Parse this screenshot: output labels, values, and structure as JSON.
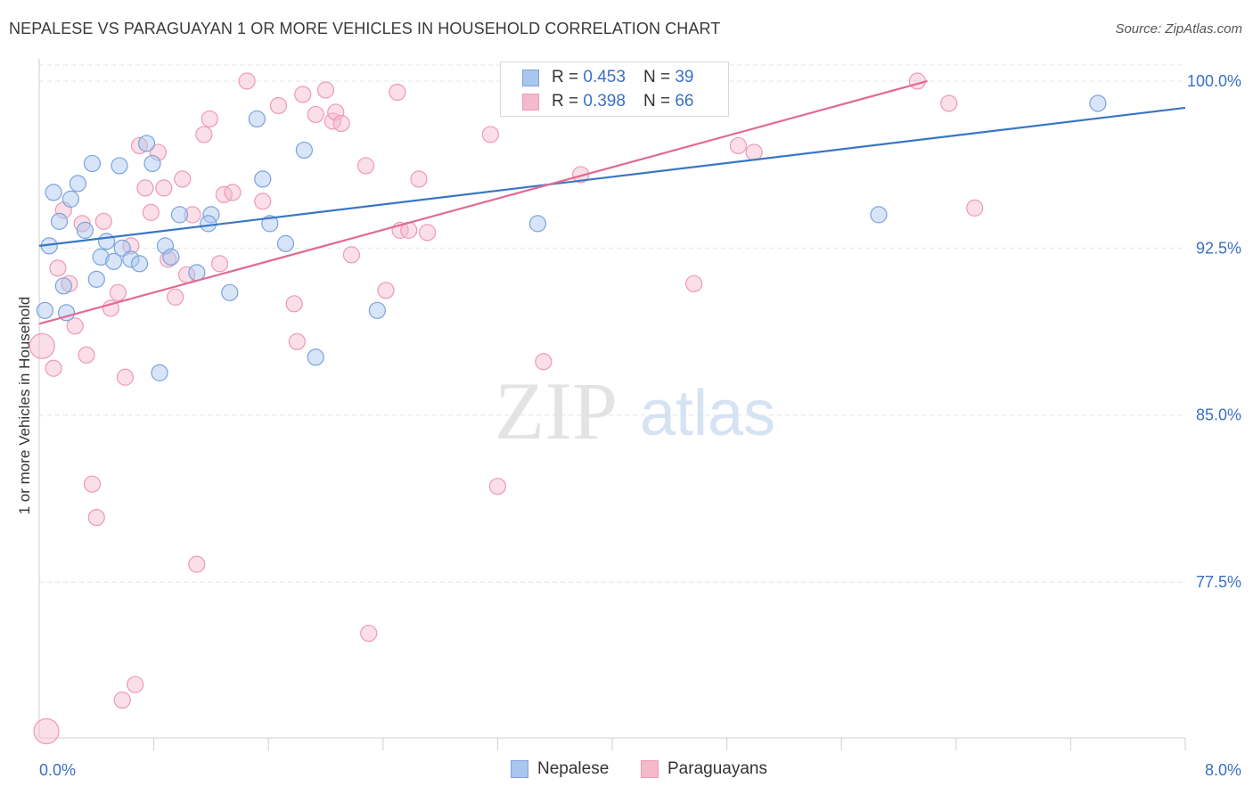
{
  "title": "NEPALESE VS PARAGUAYAN 1 OR MORE VEHICLES IN HOUSEHOLD CORRELATION CHART",
  "source": "Source: ZipAtlas.com",
  "watermark": {
    "zip": "ZIP",
    "atlas": "atlas"
  },
  "legend": {
    "rows": [
      {
        "r_label": "R =",
        "r_value": "0.453",
        "n_label": "N =",
        "n_value": "39"
      },
      {
        "r_label": "R =",
        "r_value": "0.398",
        "n_label": "N =",
        "n_value": "66"
      }
    ]
  },
  "colors": {
    "blue_fill": "#a9c6ef",
    "blue_stroke": "#7aa3dc",
    "blue_line": "#3a76c4",
    "pink_fill": "#f5b9cc",
    "pink_stroke": "#ee9ab4",
    "pink_line": "#e26a94",
    "tick_label": "#3b6fc5",
    "grid": "#e4e4e4"
  },
  "chart_data": {
    "type": "scatter",
    "xlabel": "",
    "ylabel": "1 or more Vehicles in Household",
    "xlim": [
      0.0,
      8.0
    ],
    "ylim": [
      70.5,
      101.0
    ],
    "x_tick_labels": [
      "0.0%",
      "8.0%"
    ],
    "y_ticks": [
      100.0,
      92.5,
      85.0,
      77.5
    ],
    "y_tick_labels": [
      "100.0%",
      "92.5%",
      "85.0%",
      "77.5%"
    ],
    "grid": true,
    "legend_position": "top-center",
    "series": [
      {
        "name": "Nepalese",
        "points": [
          [
            0.04,
            89.7
          ],
          [
            0.07,
            92.6
          ],
          [
            0.1,
            95.0
          ],
          [
            0.14,
            93.7
          ],
          [
            0.17,
            90.8
          ],
          [
            0.19,
            89.6
          ],
          [
            0.22,
            94.7
          ],
          [
            0.27,
            95.4
          ],
          [
            0.32,
            93.3
          ],
          [
            0.37,
            96.3
          ],
          [
            0.4,
            91.1
          ],
          [
            0.43,
            92.1
          ],
          [
            0.47,
            92.8
          ],
          [
            0.52,
            91.9
          ],
          [
            0.56,
            96.2
          ],
          [
            0.58,
            92.5
          ],
          [
            0.64,
            92.0
          ],
          [
            0.7,
            91.8
          ],
          [
            0.75,
            97.2
          ],
          [
            0.79,
            96.3
          ],
          [
            0.84,
            86.9
          ],
          [
            0.88,
            92.6
          ],
          [
            0.92,
            92.1
          ],
          [
            1.1,
            91.4
          ],
          [
            1.2,
            94.0
          ],
          [
            1.18,
            93.6
          ],
          [
            1.33,
            90.5
          ],
          [
            1.56,
            95.6
          ],
          [
            1.72,
            92.7
          ],
          [
            1.52,
            98.3
          ],
          [
            1.61,
            93.6
          ],
          [
            1.85,
            96.9
          ],
          [
            1.93,
            87.6
          ],
          [
            2.36,
            89.7
          ],
          [
            3.48,
            93.6
          ],
          [
            0.98,
            94.0
          ],
          [
            4.72,
            99.1
          ],
          [
            5.86,
            94.0
          ],
          [
            7.39,
            99.0
          ]
        ]
      },
      {
        "name": "Paraguayans",
        "points": [
          [
            0.02,
            88.1
          ],
          [
            0.05,
            70.8
          ],
          [
            0.1,
            87.1
          ],
          [
            0.13,
            91.6
          ],
          [
            0.17,
            94.2
          ],
          [
            0.21,
            90.9
          ],
          [
            0.25,
            89.0
          ],
          [
            0.3,
            93.6
          ],
          [
            0.33,
            87.7
          ],
          [
            0.37,
            81.9
          ],
          [
            0.4,
            80.4
          ],
          [
            0.45,
            93.7
          ],
          [
            0.5,
            89.8
          ],
          [
            0.55,
            90.5
          ],
          [
            0.58,
            72.2
          ],
          [
            0.6,
            86.7
          ],
          [
            0.64,
            92.6
          ],
          [
            0.67,
            72.9
          ],
          [
            0.7,
            97.1
          ],
          [
            0.74,
            95.2
          ],
          [
            0.78,
            94.1
          ],
          [
            0.83,
            96.8
          ],
          [
            0.87,
            95.2
          ],
          [
            0.9,
            92.0
          ],
          [
            0.95,
            90.3
          ],
          [
            1.0,
            95.6
          ],
          [
            1.03,
            91.3
          ],
          [
            1.07,
            94.0
          ],
          [
            1.1,
            78.3
          ],
          [
            1.15,
            97.6
          ],
          [
            1.19,
            98.3
          ],
          [
            1.26,
            91.8
          ],
          [
            1.29,
            94.9
          ],
          [
            1.35,
            95.0
          ],
          [
            1.45,
            100.0
          ],
          [
            1.56,
            94.6
          ],
          [
            1.67,
            98.9
          ],
          [
            1.78,
            90.0
          ],
          [
            1.8,
            88.3
          ],
          [
            1.84,
            99.4
          ],
          [
            1.93,
            98.5
          ],
          [
            2.0,
            99.6
          ],
          [
            2.05,
            98.2
          ],
          [
            2.07,
            98.6
          ],
          [
            2.11,
            98.1
          ],
          [
            2.18,
            92.2
          ],
          [
            2.28,
            96.2
          ],
          [
            2.3,
            75.2
          ],
          [
            2.42,
            90.6
          ],
          [
            2.5,
            99.5
          ],
          [
            2.52,
            93.3
          ],
          [
            2.58,
            93.3
          ],
          [
            2.65,
            95.6
          ],
          [
            2.71,
            93.2
          ],
          [
            3.15,
            97.6
          ],
          [
            3.2,
            81.8
          ],
          [
            3.52,
            87.4
          ],
          [
            3.78,
            95.8
          ],
          [
            4.05,
            99.2
          ],
          [
            4.29,
            100.0
          ],
          [
            4.57,
            90.9
          ],
          [
            4.88,
            97.1
          ],
          [
            4.99,
            96.8
          ],
          [
            6.13,
            100.0
          ],
          [
            6.35,
            99.0
          ],
          [
            6.53,
            94.3
          ]
        ]
      }
    ],
    "trendlines": [
      {
        "name": "Nepalese",
        "x": [
          0.0,
          8.0
        ],
        "y": [
          92.6,
          98.8
        ]
      },
      {
        "name": "Paraguayans",
        "x": [
          0.0,
          6.2
        ],
        "y": [
          89.1,
          100.0
        ]
      }
    ]
  },
  "bottom_legend": [
    "Nepalese",
    "Paraguayans"
  ]
}
